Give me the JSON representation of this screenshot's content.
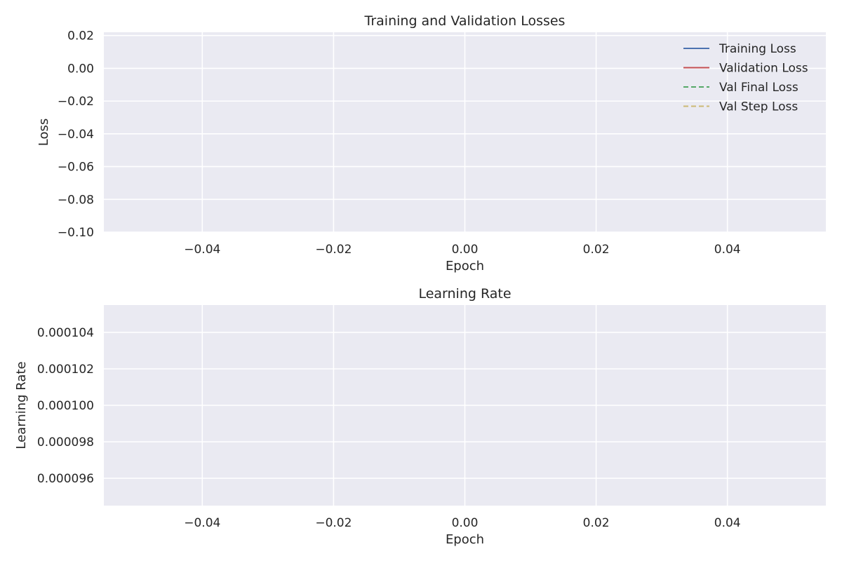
{
  "chart_data": [
    {
      "type": "line",
      "title": "Training and Validation Losses",
      "xlabel": "Epoch",
      "ylabel": "Loss",
      "xlim": [
        -0.055,
        0.055
      ],
      "ylim": [
        -0.1,
        0.022
      ],
      "x_ticks": [
        -0.04,
        -0.02,
        0.0,
        0.02,
        0.04
      ],
      "x_tick_labels": [
        "−0.04",
        "−0.02",
        "0.00",
        "0.02",
        "0.04"
      ],
      "y_ticks": [
        0.02,
        0.0,
        -0.02,
        -0.04,
        -0.06,
        -0.08,
        -0.1
      ],
      "y_tick_labels": [
        "0.02",
        "0.00",
        "−0.02",
        "−0.04",
        "−0.06",
        "−0.08",
        "−0.10"
      ],
      "grid": true,
      "legend_position": "top-right",
      "series": [
        {
          "name": "Training Loss",
          "x": [],
          "y": [],
          "color": "#4c72b0",
          "dash": "solid"
        },
        {
          "name": "Validation Loss",
          "x": [],
          "y": [],
          "color": "#c44e52",
          "dash": "solid"
        },
        {
          "name": "Val Final Loss",
          "x": [],
          "y": [],
          "color": "#55a868",
          "dash": "dashed"
        },
        {
          "name": "Val Step Loss",
          "x": [],
          "y": [],
          "color": "#ccb974",
          "dash": "dashed"
        }
      ]
    },
    {
      "type": "line",
      "title": "Learning Rate",
      "xlabel": "Epoch",
      "ylabel": "Learning Rate",
      "xlim": [
        -0.055,
        0.055
      ],
      "ylim": [
        9.45e-05,
        0.0001055
      ],
      "x_ticks": [
        -0.04,
        -0.02,
        0.0,
        0.02,
        0.04
      ],
      "x_tick_labels": [
        "−0.04",
        "−0.02",
        "0.00",
        "0.02",
        "0.04"
      ],
      "y_ticks": [
        0.000104,
        0.000102,
        0.0001,
        9.8e-05,
        9.6e-05
      ],
      "y_tick_labels": [
        "0.000104",
        "0.000102",
        "0.000100",
        "0.000098",
        "0.000096"
      ],
      "grid": true,
      "series": []
    }
  ],
  "colors": {
    "plot_background": "#eaeaf2",
    "grid": "#ffffff",
    "text": "#262626"
  }
}
